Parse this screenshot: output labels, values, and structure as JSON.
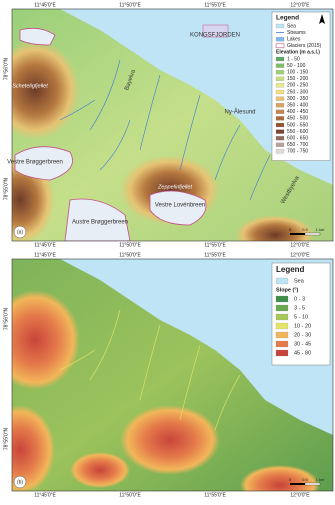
{
  "panel_a": {
    "label": "(a)",
    "lon_top": [
      "11°45'0\"E",
      "11°50'0\"E",
      "11°55'0\"E",
      "12°0'0\"E"
    ],
    "lon_bottom": [
      "11°45'0\"E",
      "11°50'0\"E",
      "11°55'0\"E",
      "12°0'0\"E"
    ],
    "lat_left": [
      "78°56'0\"N",
      "78°55'0\"N"
    ],
    "places": [
      "KONGSFJORDEN",
      "Ny-Ålesund",
      "Scheteligfjellet",
      "Vestre Brøggerbreen",
      "Zeppelinfjellet",
      "Vestre Lovénbreen",
      "Austre Brøggerbreen",
      "Bayelva",
      "Westbyelva"
    ],
    "legend": {
      "title": "Legend",
      "items": [
        {
          "label": "Sea",
          "color": "#bfe4f6",
          "kind": "box"
        },
        {
          "label": "Streams",
          "color": "#3a7fd0",
          "kind": "line"
        },
        {
          "label": "Lakes",
          "color": "#7fb8ea",
          "kind": "box"
        },
        {
          "label": "Glaciers (2015)",
          "color": "#c0508a",
          "kind": "outline"
        }
      ],
      "elevation_title": "Elevation (m a.s.l.)",
      "elevation": [
        {
          "label": "1 - 50",
          "color": "#5fa86a"
        },
        {
          "label": "50 - 100",
          "color": "#7fbd6a"
        },
        {
          "label": "100 - 150",
          "color": "#a2cf72"
        },
        {
          "label": "150 - 200",
          "color": "#c7df7e"
        },
        {
          "label": "200 - 250",
          "color": "#e6ea8c"
        },
        {
          "label": "250 - 300",
          "color": "#f2dc84"
        },
        {
          "label": "300 - 350",
          "color": "#e8c274"
        },
        {
          "label": "350 - 400",
          "color": "#d9a362"
        },
        {
          "label": "400 - 450",
          "color": "#c6854f"
        },
        {
          "label": "450 - 500",
          "color": "#ad6a41"
        },
        {
          "label": "500 - 550",
          "color": "#945535"
        },
        {
          "label": "550 - 600",
          "color": "#7c4430"
        },
        {
          "label": "600 - 650",
          "color": "#8f6a5e"
        },
        {
          "label": "650 - 700",
          "color": "#b8a39c"
        },
        {
          "label": "700 - 750",
          "color": "#e2dad6"
        }
      ]
    },
    "scale": [
      "0",
      "0.5",
      "1 km"
    ]
  },
  "panel_b": {
    "label": "(b)",
    "lon_top": [
      "11°45'0\"E",
      "11°50'0\"E",
      "11°55'0\"E",
      "12°0'0\"E"
    ],
    "lon_bottom": [
      "11°45'0\"E",
      "11°50'0\"E",
      "11°55'0\"E",
      "12°0'0\"E"
    ],
    "lat_left": [
      "78°56'0\"N",
      "78°55'0\"N"
    ],
    "legend": {
      "title": "Legend",
      "items": [
        {
          "label": "Sea",
          "color": "#bfe4f6",
          "kind": "box"
        }
      ],
      "slope_title": "Slope (°)",
      "slope": [
        {
          "label": "0 - 3",
          "color": "#3f8f4a"
        },
        {
          "label": "3 - 5",
          "color": "#6aa84f"
        },
        {
          "label": "5 - 10",
          "color": "#a6c95a"
        },
        {
          "label": "10 - 20",
          "color": "#e6e36a"
        },
        {
          "label": "20 - 30",
          "color": "#f2b65a"
        },
        {
          "label": "30 - 45",
          "color": "#e47a4a"
        },
        {
          "label": "45 - 80",
          "color": "#c8443a"
        }
      ]
    },
    "scale": [
      "0",
      "0.5",
      "1 km"
    ]
  }
}
